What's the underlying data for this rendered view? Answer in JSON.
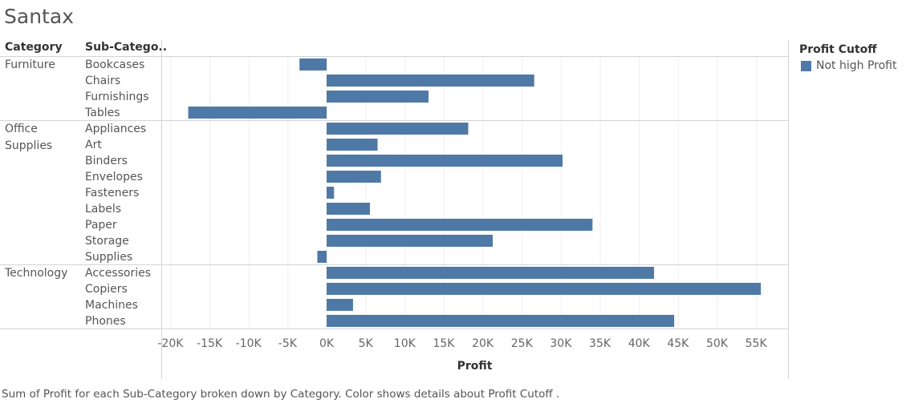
{
  "title": "Santax",
  "headers": {
    "category": "Category",
    "subcategory": "Sub-Catego.."
  },
  "legend": {
    "title": "Profit Cutoff",
    "items": [
      {
        "label": "Not high Profit",
        "color": "#4e79a7"
      }
    ]
  },
  "footer": "Sum of Profit for each Sub-Category broken down by Category.  Color shows details about Profit Cutoff .",
  "chart_data": {
    "type": "bar",
    "orientation": "horizontal",
    "xlabel": "Profit",
    "ylabel": "",
    "xlim": [
      -21000,
      59000
    ],
    "x_ticks": [
      -20000,
      -15000,
      -10000,
      -5000,
      0,
      5000,
      10000,
      15000,
      20000,
      25000,
      30000,
      35000,
      40000,
      45000,
      50000,
      55000
    ],
    "x_tick_labels": [
      "-20K",
      "-15K",
      "-10K",
      "-5K",
      "0K",
      "5K",
      "10K",
      "15K",
      "20K",
      "25K",
      "30K",
      "35K",
      "40K",
      "45K",
      "50K",
      "55K"
    ],
    "grid": true,
    "legend_position": "right",
    "bar_color": "#4e79a7",
    "groups": [
      {
        "category": "Furniture",
        "rows": [
          {
            "subcategory": "Bookcases",
            "value": -3473
          },
          {
            "subcategory": "Chairs",
            "value": 26590
          },
          {
            "subcategory": "Furnishings",
            "value": 13059
          },
          {
            "subcategory": "Tables",
            "value": -17725
          }
        ]
      },
      {
        "category": "Office Supplies",
        "rows": [
          {
            "subcategory": "Appliances",
            "value": 18138
          },
          {
            "subcategory": "Art",
            "value": 6528
          },
          {
            "subcategory": "Binders",
            "value": 30222
          },
          {
            "subcategory": "Envelopes",
            "value": 6964
          },
          {
            "subcategory": "Fasteners",
            "value": 950
          },
          {
            "subcategory": "Labels",
            "value": 5546
          },
          {
            "subcategory": "Paper",
            "value": 34054
          },
          {
            "subcategory": "Storage",
            "value": 21279
          },
          {
            "subcategory": "Supplies",
            "value": -1189
          }
        ]
      },
      {
        "category": "Technology",
        "rows": [
          {
            "subcategory": "Accessories",
            "value": 41937
          },
          {
            "subcategory": "Copiers",
            "value": 55618
          },
          {
            "subcategory": "Machines",
            "value": 3385
          },
          {
            "subcategory": "Phones",
            "value": 44516
          }
        ]
      }
    ]
  }
}
